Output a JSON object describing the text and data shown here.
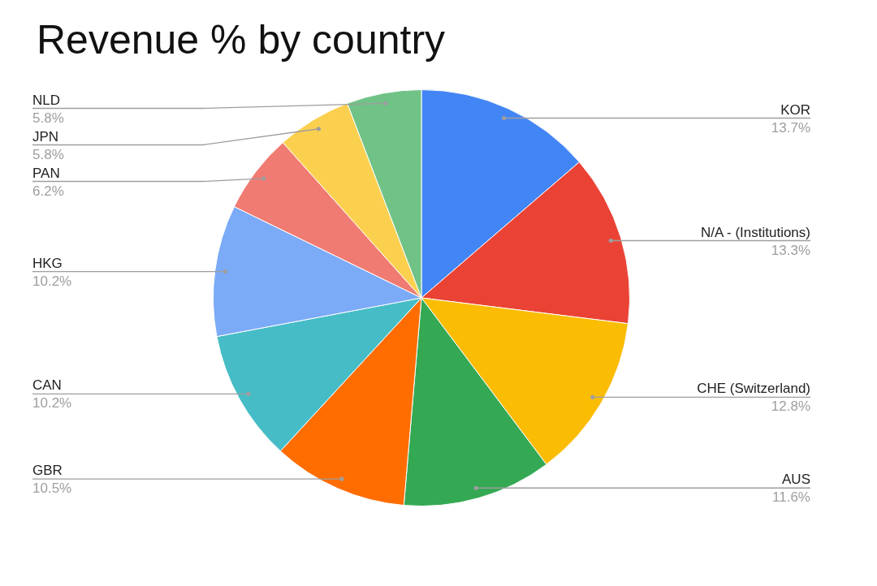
{
  "chart_data": {
    "type": "pie",
    "title": "Revenue % by country",
    "categories": [
      "KOR",
      "N/A - (Institutions)",
      "CHE (Switzerland)",
      "AUS",
      "GBR",
      "CAN",
      "HKG",
      "PAN",
      "JPN",
      "NLD"
    ],
    "values": [
      13.7,
      13.3,
      12.8,
      11.6,
      10.5,
      10.2,
      10.2,
      6.2,
      5.8,
      5.8
    ],
    "value_labels": [
      "13.7%",
      "13.3%",
      "12.8%",
      "11.6%",
      "10.5%",
      "10.2%",
      "10.2%",
      "6.2%",
      "5.8%",
      "5.8%"
    ],
    "colors": [
      "#4285f4",
      "#ea4335",
      "#fbbc04",
      "#34a853",
      "#ff6d01",
      "#46bdc6",
      "#7baaf7",
      "#f07b72",
      "#fcd04f",
      "#71c287"
    ],
    "legend": false
  }
}
